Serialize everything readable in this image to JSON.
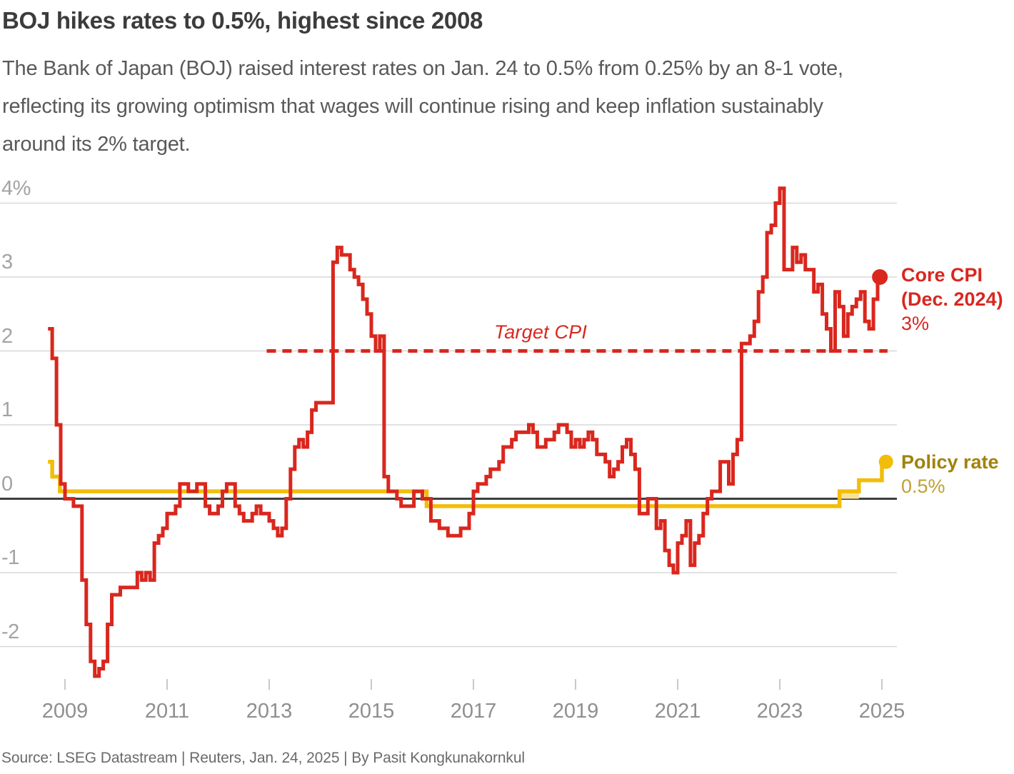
{
  "header": {
    "title": "BOJ hikes rates to 0.5%, highest since 2008",
    "subtitle_lines": [
      "The Bank of Japan (BOJ) raised interest rates on Jan. 24 to 0.5% from 0.25% by an 8-1 vote,",
      "reflecting its growing optimism that wages will continue rising and keep inflation sustainably",
      "around its 2% target."
    ]
  },
  "colors": {
    "cpi_red": "#d9271e",
    "policy_yellow": "#f2bd0a",
    "policy_band_fill": "#f7e296",
    "policy_label_gold": "#a1820a",
    "policy_value_gold": "#bfa133",
    "grid": "#d8d8d8",
    "zero_line": "#3e3e3e",
    "tick": "#c9c9c9",
    "axis_text": "#a3a3a3",
    "year_text": "#8f8f8f"
  },
  "chart_data": {
    "type": "line",
    "title": "BOJ hikes rates to 0.5%, highest since 2008",
    "unit": "%",
    "grid": true,
    "y_axis": {
      "tick_labels": [
        "4%",
        "3",
        "2",
        "1",
        "0",
        "-1",
        "-2"
      ],
      "tick_values": [
        4,
        3,
        2,
        1,
        0,
        -1,
        -2
      ],
      "range": [
        -2.75,
        4.35
      ],
      "zero_line": true
    },
    "x_axis": {
      "tick_labels": [
        "2009",
        "2011",
        "2013",
        "2015",
        "2017",
        "2019",
        "2021",
        "2023",
        "2025"
      ],
      "tick_years": [
        2009,
        2011,
        2013,
        2015,
        2017,
        2019,
        2021,
        2023,
        2025
      ],
      "range": [
        2008.55,
        2025.35
      ]
    },
    "target_line": {
      "label": "Target CPI",
      "value": 2,
      "style": "dashed",
      "from_year": 2012.95,
      "to_year": 2025.11
    },
    "series": [
      {
        "name": "Core CPI",
        "type": "step-line",
        "frequency": "monthly",
        "start_year_month": "2008-09",
        "end_year_month": "2024-12",
        "end_label": {
          "line1": "Core CPI",
          "line2": "(Dec. 2024)",
          "value": "3%"
        },
        "end_dot": {
          "year": 2024.96,
          "value": 3.0
        },
        "values": [
          2.3,
          1.9,
          1.0,
          0.2,
          0.0,
          0.0,
          -0.1,
          -0.1,
          -1.1,
          -1.7,
          -2.2,
          -2.4,
          -2.3,
          -2.2,
          -1.7,
          -1.3,
          -1.3,
          -1.2,
          -1.2,
          -1.2,
          -1.2,
          -1.0,
          -1.1,
          -1.0,
          -1.1,
          -0.6,
          -0.5,
          -0.4,
          -0.2,
          -0.2,
          -0.1,
          0.2,
          0.2,
          0.1,
          0.1,
          0.2,
          0.2,
          -0.1,
          -0.2,
          -0.2,
          -0.1,
          0.1,
          0.2,
          0.2,
          -0.1,
          -0.2,
          -0.3,
          -0.3,
          -0.2,
          -0.1,
          -0.2,
          -0.2,
          -0.3,
          -0.4,
          -0.5,
          -0.4,
          0.0,
          0.4,
          0.7,
          0.8,
          0.7,
          0.9,
          1.2,
          1.3,
          1.3,
          1.3,
          1.3,
          3.2,
          3.4,
          3.3,
          3.3,
          3.1,
          3.0,
          2.9,
          2.7,
          2.5,
          2.2,
          2.0,
          2.2,
          0.3,
          0.1,
          0.1,
          0.0,
          -0.1,
          -0.1,
          -0.1,
          0.1,
          0.1,
          0.0,
          0.0,
          -0.3,
          -0.3,
          -0.4,
          -0.4,
          -0.5,
          -0.5,
          -0.5,
          -0.4,
          -0.4,
          -0.2,
          0.1,
          0.2,
          0.2,
          0.3,
          0.4,
          0.4,
          0.5,
          0.7,
          0.7,
          0.8,
          0.9,
          0.9,
          0.9,
          1.0,
          0.9,
          0.7,
          0.7,
          0.8,
          0.8,
          0.9,
          1.0,
          1.0,
          0.9,
          0.7,
          0.8,
          0.7,
          0.8,
          0.9,
          0.8,
          0.6,
          0.6,
          0.5,
          0.3,
          0.4,
          0.5,
          0.7,
          0.8,
          0.6,
          0.4,
          -0.2,
          -0.2,
          0.0,
          0.0,
          -0.4,
          -0.3,
          -0.7,
          -0.9,
          -1.0,
          -0.6,
          -0.5,
          -0.3,
          -0.9,
          -0.6,
          -0.5,
          -0.2,
          0.0,
          0.1,
          0.1,
          0.5,
          0.5,
          0.2,
          0.6,
          0.8,
          2.1,
          2.1,
          2.2,
          2.4,
          2.8,
          3.0,
          3.6,
          3.7,
          4.0,
          4.2,
          3.1,
          3.1,
          3.4,
          3.2,
          3.3,
          3.1,
          3.1,
          2.8,
          2.9,
          2.5,
          2.3,
          2.0,
          2.8,
          2.6,
          2.2,
          2.5,
          2.6,
          2.7,
          2.8,
          2.4,
          2.3,
          2.7,
          3.0
        ]
      },
      {
        "name": "Policy rate",
        "type": "step-line",
        "end_label": {
          "line1": "Policy rate",
          "value": "0.5%"
        },
        "end_dot": {
          "year": 2025.08,
          "value": 0.5
        },
        "segments": [
          {
            "from_year": 2008.667,
            "to_year": 2008.75,
            "value": 0.5
          },
          {
            "from_year": 2008.75,
            "to_year": 2008.9,
            "value": 0.3
          },
          {
            "from_year": 2008.9,
            "to_year": 2016.083,
            "value": 0.1
          },
          {
            "from_year": 2016.083,
            "to_year": 2024.17,
            "value": -0.1
          },
          {
            "from_year": 2024.17,
            "to_year": 2024.55,
            "value": 0.1
          },
          {
            "from_year": 2024.55,
            "to_year": 2025.0,
            "value": 0.25
          },
          {
            "from_year": 2025.0,
            "to_year": 2025.08,
            "value": 0.5
          }
        ],
        "range_band": {
          "from_year": 2024.17,
          "to_year": 2024.55,
          "low": 0.0,
          "high": 0.1
        }
      }
    ]
  },
  "footer": {
    "source": "Source: LSEG Datastream | Reuters, Jan. 24, 2025 | By Pasit Kongkunakornkul"
  }
}
